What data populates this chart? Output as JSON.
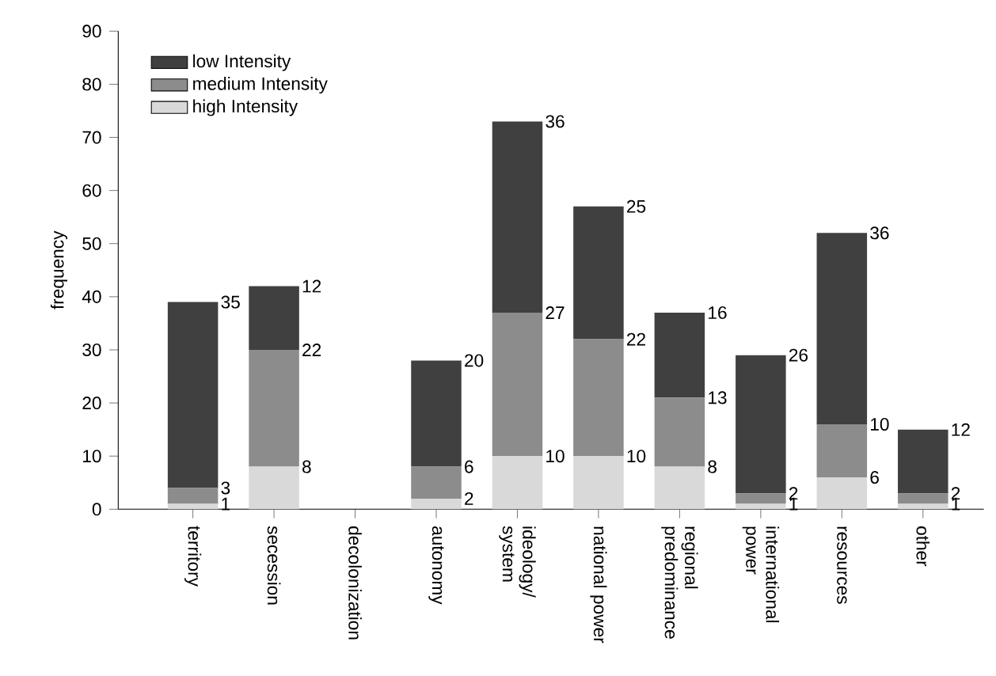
{
  "chart_data": {
    "type": "bar",
    "stacked": true,
    "ylabel": "frequency",
    "categories": [
      "territory",
      "secession",
      "decolonization",
      "autonomy",
      "ideology/ system",
      "national power",
      "regional predominance",
      "international power",
      "resources",
      "other"
    ],
    "series": [
      {
        "name": "high Intensity",
        "color": "#d9d9d9",
        "values": [
          1,
          8,
          null,
          2,
          10,
          10,
          8,
          1,
          6,
          1
        ]
      },
      {
        "name": "medium Intensity",
        "color": "#8c8c8c",
        "values": [
          3,
          22,
          null,
          6,
          27,
          22,
          13,
          2,
          10,
          2
        ]
      },
      {
        "name": "low Intensity",
        "color": "#404040",
        "values": [
          35,
          12,
          null,
          20,
          36,
          25,
          16,
          26,
          36,
          12
        ]
      }
    ],
    "ylim": [
      0,
      90
    ],
    "yticks": [
      0,
      10,
      20,
      30,
      40,
      50,
      60,
      70,
      80,
      90
    ],
    "legend": "top left",
    "data_labels": true,
    "grid": false
  }
}
